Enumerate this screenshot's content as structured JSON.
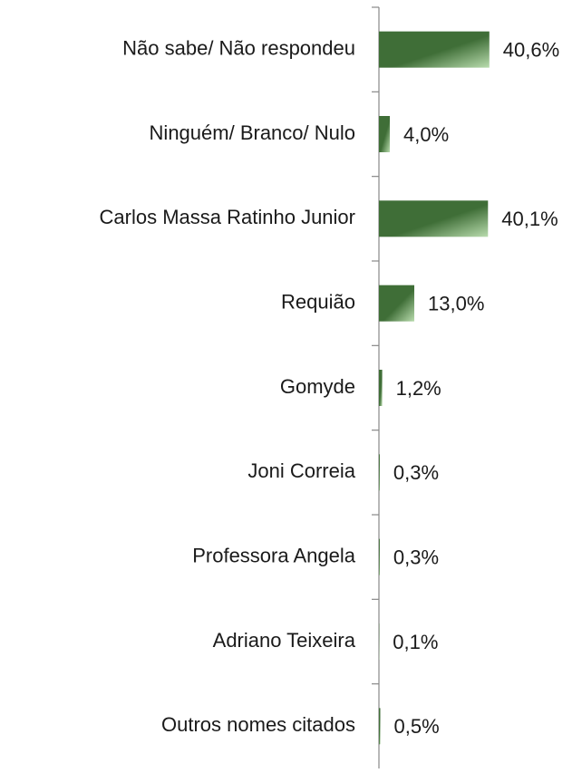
{
  "chart_data": {
    "type": "bar",
    "orientation": "horizontal",
    "categories": [
      "Não sabe/ Não respondeu",
      "Ninguém/ Branco/ Nulo",
      "Carlos Massa Ratinho Junior",
      "Requião",
      "Gomyde",
      "Joni Correia",
      "Professora Angela",
      "Adriano Teixeira",
      "Outros nomes citados"
    ],
    "values": [
      40.6,
      4.0,
      40.1,
      13.0,
      1.2,
      0.3,
      0.3,
      0.1,
      0.5
    ],
    "value_labels": [
      "40,6%",
      "4,0%",
      "40,1%",
      "13,0%",
      "1,2%",
      "0,3%",
      "0,3%",
      "0,1%",
      "0,5%"
    ],
    "color": "#3f6e37"
  }
}
